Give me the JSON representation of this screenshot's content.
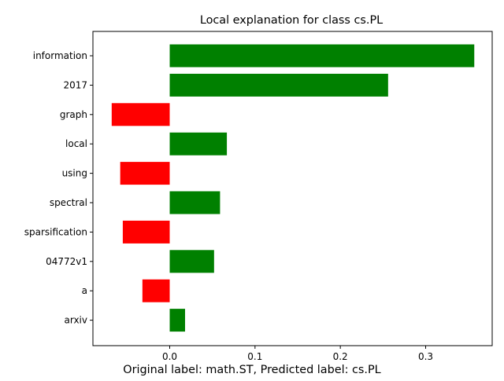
{
  "chart_data": {
    "type": "bar",
    "orientation": "horizontal",
    "title": "Local explanation for class cs.PL",
    "categories": [
      "information",
      "2017",
      "graph",
      "local",
      "using",
      "spectral",
      "sparsification",
      "04772v1",
      "a",
      "arxiv"
    ],
    "values": [
      0.357,
      0.256,
      -0.068,
      0.067,
      -0.058,
      0.059,
      -0.055,
      0.052,
      -0.032,
      0.018
    ],
    "positive_color": "#008000",
    "negative_color": "#ff0000",
    "xlim": [
      -0.09,
      0.378
    ],
    "xticks": [
      0.0,
      0.1,
      0.2,
      0.3
    ],
    "xtick_labels": [
      "0.0",
      "0.1",
      "0.2",
      "0.3"
    ],
    "grid": false,
    "caption": "Original label: math.ST, Predicted label: cs.PL"
  }
}
